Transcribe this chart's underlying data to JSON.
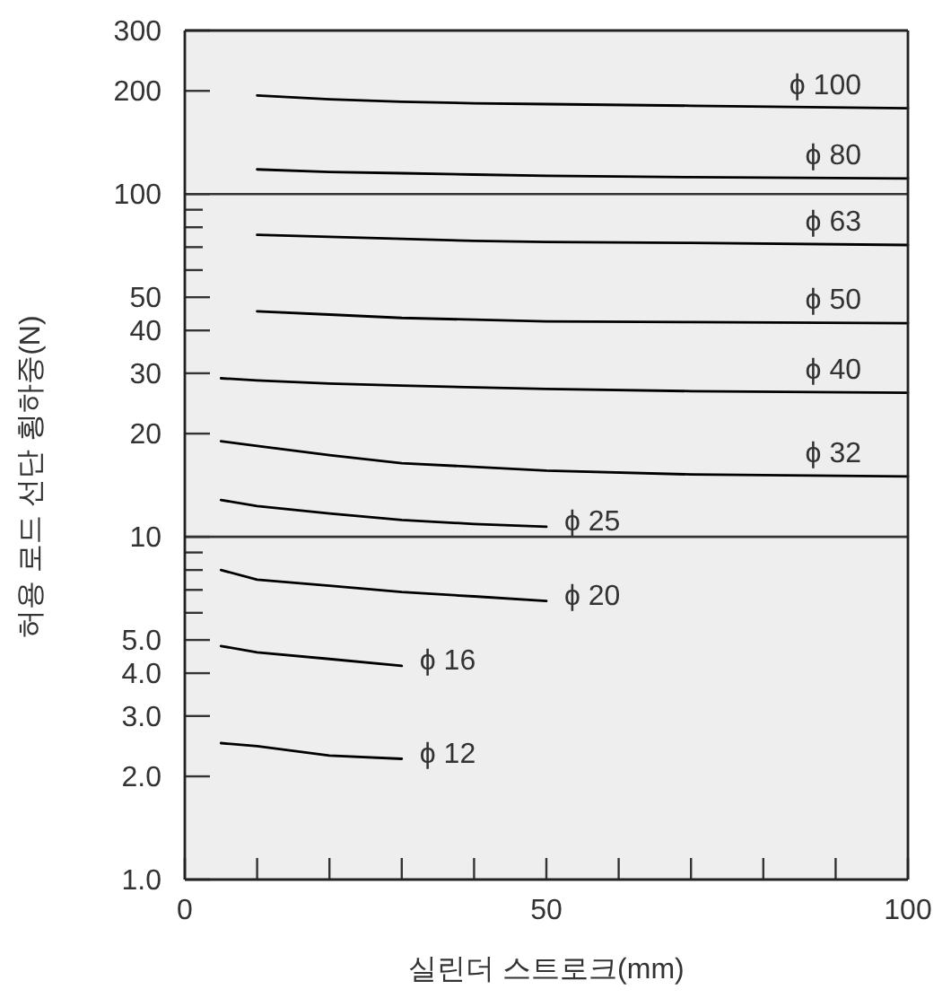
{
  "chart_data": {
    "type": "line",
    "xlabel": "실린더 스트로크(mm)",
    "ylabel": "허용 로드 선단 횡하중(N)",
    "log": "y",
    "xlim": [
      0,
      100
    ],
    "xticks": [
      0,
      {
        "value": 10,
        "label": null
      },
      {
        "value": 20,
        "label": null
      },
      {
        "value": 30,
        "label": null
      },
      {
        "value": 40,
        "label": null
      },
      50,
      {
        "value": 60,
        "label": null
      },
      {
        "value": 70,
        "label": null
      },
      {
        "value": 80,
        "label": null
      },
      {
        "value": 90,
        "label": null
      },
      100
    ],
    "ylim": [
      1,
      300
    ],
    "yticks": [
      {
        "value": 1,
        "label": "1.0"
      },
      {
        "value": 2,
        "label": "2.0"
      },
      {
        "value": 3,
        "label": "3.0"
      },
      {
        "value": 4,
        "label": "4.0"
      },
      {
        "value": 5,
        "label": "5.0"
      },
      {
        "value": 6,
        "label": null
      },
      {
        "value": 7,
        "label": null
      },
      {
        "value": 8,
        "label": null
      },
      {
        "value": 9,
        "label": null
      },
      10,
      20,
      30,
      40,
      50,
      {
        "value": 60,
        "label": null
      },
      {
        "value": 70,
        "label": null
      },
      {
        "value": 80,
        "label": null
      },
      {
        "value": 90,
        "label": null
      },
      100,
      200,
      300
    ],
    "grid": false,
    "marker": "none",
    "line_style": "solid",
    "ref_lines": [
      {
        "axis": "y",
        "value": 10,
        "color": "#333333"
      },
      {
        "axis": "y",
        "value": 100,
        "color": "#333333"
      }
    ],
    "series": [
      {
        "name": "ϕ 100",
        "color": "#000000",
        "x": [
          10,
          20,
          30,
          40,
          50,
          70,
          100
        ],
        "values": [
          194,
          189,
          186,
          184,
          183,
          181,
          178
        ]
      },
      {
        "name": "ϕ 80",
        "color": "#000000",
        "x": [
          10,
          20,
          30,
          40,
          50,
          70,
          100
        ],
        "values": [
          118,
          116,
          115,
          114,
          113,
          112,
          111
        ]
      },
      {
        "name": "ϕ 63",
        "color": "#000000",
        "x": [
          10,
          20,
          30,
          40,
          50,
          70,
          100
        ],
        "values": [
          76,
          75,
          74,
          73,
          72.5,
          72,
          71
        ]
      },
      {
        "name": "ϕ 50",
        "color": "#000000",
        "x": [
          10,
          20,
          30,
          40,
          50,
          70,
          100
        ],
        "values": [
          45.5,
          44.5,
          43.5,
          43,
          42.5,
          42.3,
          42
        ]
      },
      {
        "name": "ϕ 40",
        "color": "#000000",
        "x": [
          5,
          10,
          20,
          30,
          50,
          70,
          100
        ],
        "values": [
          29,
          28.6,
          28,
          27.6,
          27,
          26.6,
          26.3
        ]
      },
      {
        "name": "ϕ 32",
        "color": "#000000",
        "x": [
          5,
          10,
          20,
          30,
          50,
          70,
          100
        ],
        "values": [
          19,
          18.4,
          17.3,
          16.4,
          15.6,
          15.2,
          15
        ]
      },
      {
        "name": "ϕ 25",
        "color": "#000000",
        "x": [
          5,
          10,
          20,
          30,
          40,
          50
        ],
        "values": [
          12.8,
          12.3,
          11.7,
          11.2,
          10.9,
          10.7
        ]
      },
      {
        "name": "ϕ 20",
        "color": "#000000",
        "x": [
          5,
          10,
          20,
          30,
          40,
          50
        ],
        "values": [
          8,
          7.5,
          7.2,
          6.9,
          6.7,
          6.5
        ]
      },
      {
        "name": "ϕ 16",
        "color": "#000000",
        "x": [
          5,
          10,
          20,
          30
        ],
        "values": [
          4.8,
          4.6,
          4.4,
          4.2
        ]
      },
      {
        "name": "ϕ 12",
        "color": "#000000",
        "x": [
          5,
          10,
          20,
          30
        ],
        "values": [
          2.5,
          2.45,
          2.3,
          2.25
        ]
      }
    ]
  }
}
